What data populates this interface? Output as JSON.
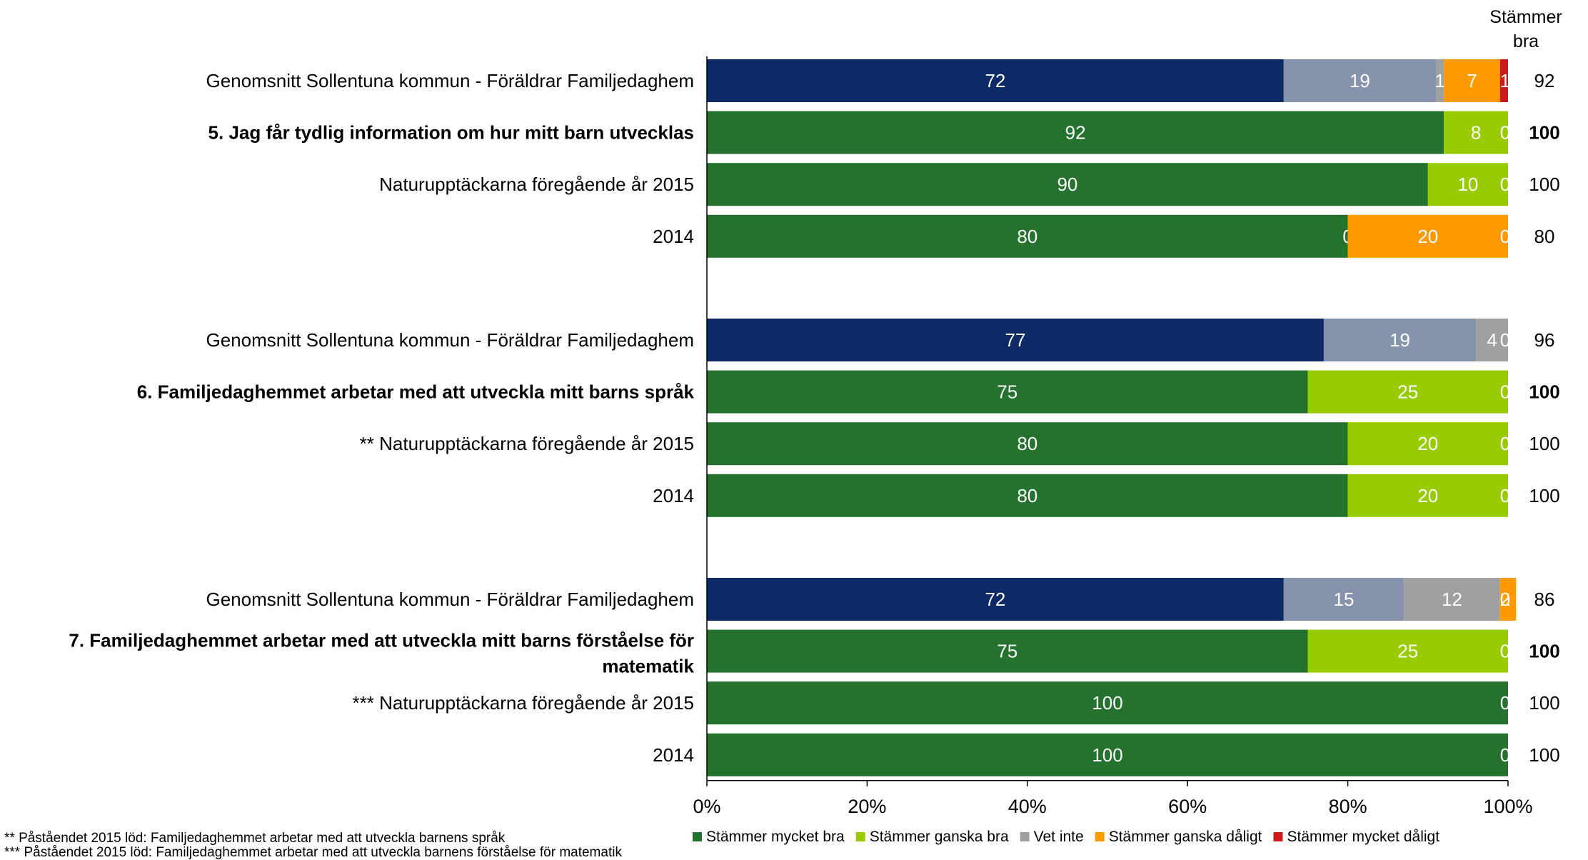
{
  "chart_data": {
    "type": "bar",
    "orientation": "horizontal",
    "stacked": true,
    "column_header": "Stämmer bra",
    "xlim": [
      0,
      100
    ],
    "x_ticks": [
      "0%",
      "20%",
      "40%",
      "60%",
      "80%",
      "100%"
    ],
    "legend_position": "bottom",
    "series": [
      {
        "name": "Stämmer mycket bra",
        "color": "#24722e"
      },
      {
        "name": "Stämmer ganska bra",
        "color": "#99cc00"
      },
      {
        "name": "Vet inte",
        "color": "#a0a0a0"
      },
      {
        "name": "Stämmer ganska dåligt",
        "color": "#ff9900"
      },
      {
        "name": "Stämmer mycket dåligt",
        "color": "#cc1a1a"
      }
    ],
    "benchmark_colors": [
      "#0d2a66",
      "#8693ad",
      "#a0a0a0",
      "#ff9900",
      "#cc1a1a"
    ],
    "groups": [
      {
        "rows": [
          {
            "label": "Genomsnitt Sollentuna kommun - Föräldrar Familjedaghem",
            "benchmark": true,
            "bold": false,
            "values": [
              72,
              19,
              1,
              7,
              1
            ],
            "labels": [
              "72",
              "19",
              "1",
              "7",
              "1"
            ],
            "total": "92"
          },
          {
            "label": "5. Jag får tydlig information om hur mitt barn utvecklas",
            "benchmark": false,
            "bold": true,
            "values": [
              92,
              8,
              0,
              0,
              0
            ],
            "labels": [
              "92",
              "8",
              "0",
              "",
              ""
            ],
            "total": "100"
          },
          {
            "label": "Naturupptäckarna föregående år 2015",
            "benchmark": false,
            "bold": false,
            "values": [
              90,
              10,
              0,
              0,
              0
            ],
            "labels": [
              "90",
              "10",
              "0",
              "",
              ""
            ],
            "total": "100"
          },
          {
            "label": "2014",
            "benchmark": false,
            "bold": false,
            "values": [
              80,
              0,
              0,
              20,
              0
            ],
            "labels": [
              "80",
              "0",
              "",
              "20",
              "0"
            ],
            "total": "80"
          }
        ]
      },
      {
        "rows": [
          {
            "label": "Genomsnitt Sollentuna kommun - Föräldrar Familjedaghem",
            "benchmark": true,
            "bold": false,
            "values": [
              77,
              19,
              4,
              0,
              0
            ],
            "labels": [
              "77",
              "19",
              "4",
              "0",
              ""
            ],
            "total": "96"
          },
          {
            "label": "6. Familjedaghemmet arbetar med att utveckla mitt barns språk",
            "benchmark": false,
            "bold": true,
            "values": [
              75,
              25,
              0,
              0,
              0
            ],
            "labels": [
              "75",
              "25",
              "0",
              "",
              ""
            ],
            "total": "100"
          },
          {
            "label": "** Naturupptäckarna föregående år 2015",
            "benchmark": false,
            "bold": false,
            "values": [
              80,
              20,
              0,
              0,
              0
            ],
            "labels": [
              "80",
              "20",
              "0",
              "",
              ""
            ],
            "total": "100"
          },
          {
            "label": "2014",
            "benchmark": false,
            "bold": false,
            "values": [
              80,
              20,
              0,
              0,
              0
            ],
            "labels": [
              "80",
              "20",
              "0",
              "",
              ""
            ],
            "total": "100"
          }
        ]
      },
      {
        "rows": [
          {
            "label": "Genomsnitt Sollentuna kommun - Föräldrar Familjedaghem",
            "benchmark": true,
            "bold": false,
            "values": [
              72,
              15,
              12,
              2,
              0
            ],
            "labels": [
              "72",
              "15",
              "12",
              "2",
              "0"
            ],
            "total": "86"
          },
          {
            "label": "7. Familjedaghemmet arbetar med att utveckla mitt barns förståelse för matematik",
            "label_lines": [
              "7. Familjedaghemmet arbetar med att utveckla mitt barns förståelse för",
              "matematik"
            ],
            "benchmark": false,
            "bold": true,
            "values": [
              75,
              25,
              0,
              0,
              0
            ],
            "labels": [
              "75",
              "25",
              "0",
              "",
              ""
            ],
            "total": "100"
          },
          {
            "label": "*** Naturupptäckarna föregående år 2015",
            "benchmark": false,
            "bold": false,
            "values": [
              100,
              0,
              0,
              0,
              0
            ],
            "labels": [
              "100",
              "0",
              "",
              "",
              ""
            ],
            "total": "100"
          },
          {
            "label": "2014",
            "benchmark": false,
            "bold": false,
            "values": [
              100,
              0,
              0,
              0,
              0
            ],
            "labels": [
              "100",
              "0",
              "",
              "",
              ""
            ],
            "total": "100"
          }
        ]
      }
    ]
  },
  "footnotes": {
    "line1": "** Påståendet 2015 löd: Familjedaghemmet arbetar med att utveckla barnens språk",
    "line2": "*** Påståendet 2015 löd: Familjedaghemmet arbetar med att utveckla barnens förståelse för matematik"
  }
}
